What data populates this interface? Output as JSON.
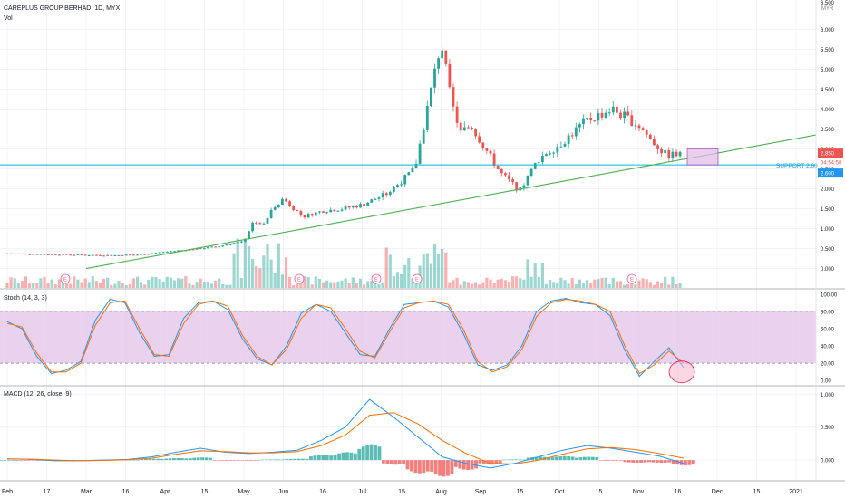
{
  "header": {
    "symbol": "CAREPLUS GROUP BERHAD, 1D, MYX",
    "volume_label": "Vol",
    "currency": "MYR",
    "stoch_label": "Stoch (14, 3, 3)",
    "macd_label": "MACD (12, 26, close, 9)"
  },
  "annotations": {
    "support_label": "SUPPORT 2.60",
    "last_price_tag": "2.850",
    "countdown_tag": "04:54:50",
    "support_tag": "2.600",
    "event_marker": "E",
    "top_partial_tick": "6.500"
  },
  "colors": {
    "up": "#26a69a",
    "down": "#ef5350",
    "stoch_k": "#2196f3",
    "stoch_d": "#ff6d00",
    "stoch_band": "#e1bee7",
    "trendline": "#4caf50",
    "support_line": "#00bcd4",
    "highlight_box": "#e1bee7",
    "oversold_circle": "#f8bbd0"
  },
  "chart_data": [
    {
      "type": "candlestick",
      "title": "CAREPLUS GROUP BERHAD, 1D, MYX",
      "y_ticks": [
        "6.000",
        "5.500",
        "5.000",
        "4.500",
        "4.000",
        "3.500",
        "3.000",
        "2.500",
        "2.000",
        "1.500",
        "1.000",
        "0.500",
        "0.000"
      ],
      "ylim": [
        -0.35,
        6.6
      ],
      "x_ticks": [
        "Feb",
        "17",
        "Mar",
        "16",
        "Apr",
        "15",
        "May",
        "Jun",
        "16",
        "Jul",
        "15",
        "Aug",
        "Sep",
        "15",
        "Oct",
        "15",
        "Nov",
        "16",
        "Dec",
        "15",
        "2021"
      ],
      "close_series_by_month": {
        "Feb": [
          0.38,
          0.37,
          0.36,
          0.35
        ],
        "Mar": [
          0.34,
          0.33,
          0.35
        ],
        "Apr": [
          0.42,
          0.48,
          0.55
        ],
        "May": [
          0.7,
          1.2,
          1.1,
          1.55
        ],
        "Jun": [
          1.75,
          1.3,
          1.45,
          1.5
        ],
        "Jul": [
          1.6,
          1.9,
          2.5
        ],
        "Aug": [
          5.7,
          4.2,
          3.4,
          3.6
        ],
        "Sep": [
          3.2,
          2.4,
          1.95,
          2.8
        ],
        "Oct": [
          3.1,
          3.7,
          4.0
        ],
        "Nov": [
          3.6,
          3.2,
          2.85
        ]
      },
      "last_close": 2.85,
      "support_level": 2.6,
      "trendline": {
        "from": [
          "Mar",
          0.0
        ],
        "to": [
          "2021",
          3.35
        ]
      },
      "volume_series": "histogram overlaid at bottom of price pane",
      "event_markers": [
        "E",
        "E",
        "E",
        "E",
        "E"
      ]
    },
    {
      "type": "line",
      "title": "Stoch (14, 3, 3)",
      "y_ticks": [
        "100.00",
        "80.00",
        "60.00",
        "40.00",
        "20.00",
        "0.00"
      ],
      "ylim": [
        -5,
        105
      ],
      "band": [
        20,
        80
      ],
      "series": [
        {
          "name": "%K",
          "values": [
            68,
            60,
            28,
            8,
            12,
            22,
            70,
            94,
            90,
            55,
            28,
            30,
            72,
            90,
            92,
            82,
            48,
            25,
            18,
            40,
            78,
            88,
            80,
            55,
            30,
            28,
            60,
            88,
            90,
            92,
            85,
            55,
            18,
            12,
            18,
            40,
            80,
            92,
            95,
            90,
            88,
            75,
            35,
            5,
            22,
            38,
            15
          ]
        },
        {
          "name": "%D",
          "values": [
            66,
            62,
            32,
            10,
            10,
            20,
            64,
            90,
            92,
            60,
            30,
            28,
            66,
            88,
            92,
            86,
            52,
            28,
            18,
            36,
            72,
            88,
            84,
            60,
            34,
            26,
            56,
            84,
            90,
            92,
            88,
            60,
            22,
            10,
            16,
            36,
            74,
            90,
            94,
            92,
            88,
            80,
            40,
            8,
            18,
            34,
            20
          ]
        }
      ],
      "highlight": "oversold circle near last value"
    },
    {
      "type": "line",
      "title": "MACD (12, 26, close, 9)",
      "y_ticks": [
        "1.000",
        "0.500",
        "0.000"
      ],
      "ylim": [
        -0.3,
        1.1
      ],
      "series": [
        {
          "name": "MACD",
          "values": [
            0.02,
            0.01,
            -0.01,
            -0.01,
            0.0,
            0.01,
            0.05,
            0.12,
            0.18,
            0.12,
            0.1,
            0.12,
            0.15,
            0.3,
            0.5,
            0.92,
            0.65,
            0.35,
            0.05,
            -0.05,
            -0.12,
            -0.05,
            0.05,
            0.15,
            0.22,
            0.18,
            0.12,
            0.06,
            -0.05
          ]
        },
        {
          "name": "Signal",
          "values": [
            0.02,
            0.015,
            0.0,
            -0.01,
            -0.005,
            0.005,
            0.03,
            0.09,
            0.14,
            0.13,
            0.11,
            0.11,
            0.13,
            0.22,
            0.38,
            0.68,
            0.72,
            0.55,
            0.3,
            0.1,
            -0.05,
            -0.06,
            0.0,
            0.09,
            0.17,
            0.19,
            0.16,
            0.1,
            0.03
          ]
        }
      ],
      "histogram": [
        0.0,
        -0.005,
        -0.01,
        0.0,
        0.005,
        0.005,
        0.02,
        0.03,
        0.04,
        -0.01,
        -0.01,
        0.01,
        0.02,
        0.08,
        0.12,
        0.24,
        -0.07,
        -0.2,
        -0.25,
        -0.15,
        -0.07,
        0.01,
        0.05,
        0.06,
        0.05,
        -0.01,
        -0.04,
        -0.04,
        -0.08
      ]
    }
  ]
}
